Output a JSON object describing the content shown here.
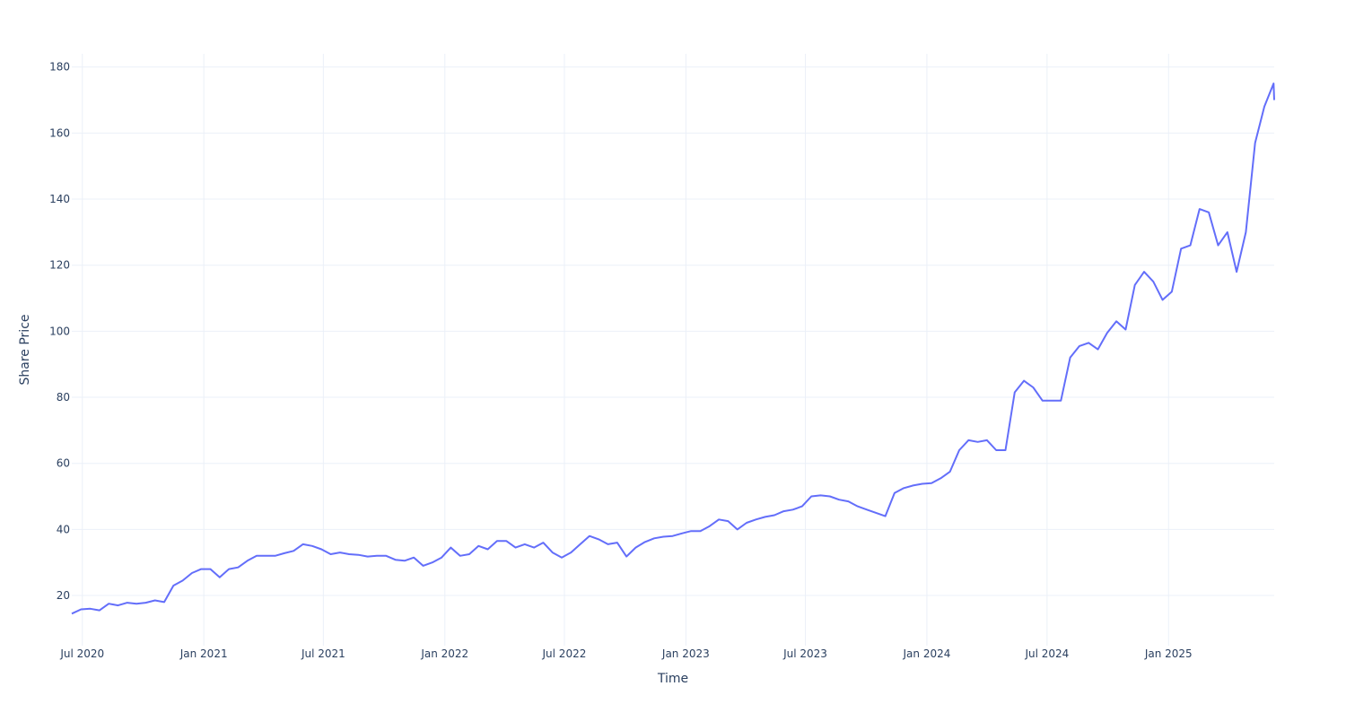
{
  "chart_data": {
    "type": "line",
    "title": "",
    "xlabel": "Time",
    "ylabel": "Share Price",
    "grid": true,
    "legend": "none",
    "colors": {
      "line": "#636efa",
      "grid": "#ebf0f8",
      "text": "#2a3f5f"
    },
    "xlim": [
      "2020-06-15",
      "2025-06-10"
    ],
    "ylim": [
      4.8,
      184
    ],
    "x_ticks": [
      {
        "date": "2020-07-01",
        "label": "Jul 2020"
      },
      {
        "date": "2021-01-01",
        "label": "Jan 2021"
      },
      {
        "date": "2021-07-01",
        "label": "Jul 2021"
      },
      {
        "date": "2022-01-01",
        "label": "Jan 2022"
      },
      {
        "date": "2022-07-01",
        "label": "Jul 2022"
      },
      {
        "date": "2023-01-01",
        "label": "Jan 2023"
      },
      {
        "date": "2023-07-01",
        "label": "Jul 2023"
      },
      {
        "date": "2024-01-01",
        "label": "Jan 2024"
      },
      {
        "date": "2024-07-01",
        "label": "Jul 2024"
      },
      {
        "date": "2025-01-01",
        "label": "Jan 2025"
      }
    ],
    "y_ticks": [
      {
        "value": 20,
        "label": "20"
      },
      {
        "value": 40,
        "label": "40"
      },
      {
        "value": 60,
        "label": "60"
      },
      {
        "value": 80,
        "label": "80"
      },
      {
        "value": 100,
        "label": "100"
      },
      {
        "value": 120,
        "label": "120"
      },
      {
        "value": 140,
        "label": "140"
      },
      {
        "value": 160,
        "label": "160"
      },
      {
        "value": 180,
        "label": "180"
      }
    ],
    "series": [
      {
        "name": "Share Price",
        "start_date": "2020-06-15",
        "step_days": 14,
        "values": [
          14.5,
          15.8,
          16,
          15.5,
          17.5,
          17,
          17.8,
          17.5,
          17.8,
          18.5,
          18,
          23,
          24.5,
          26.8,
          28,
          28,
          25.5,
          28,
          28.5,
          30.5,
          32,
          32,
          32,
          32.8,
          33.5,
          35.5,
          35,
          34,
          32.5,
          33,
          32.5,
          32.3,
          31.8,
          32,
          32,
          30.8,
          30.5,
          31.5,
          29,
          30,
          31.5,
          34.5,
          32,
          32.5,
          35,
          34,
          36.5,
          36.5,
          34.5,
          35.5,
          34.5,
          36,
          33,
          31.5,
          33,
          35.5,
          38,
          37,
          35.5,
          36,
          31.8,
          34.5,
          36.2,
          37.3,
          37.8,
          38,
          38.8,
          39.5,
          39.5,
          41,
          43,
          42.5,
          40,
          42,
          43,
          43.8,
          44.3,
          45.5,
          46,
          47,
          50,
          50.3,
          50,
          49,
          48.5,
          47,
          46,
          45,
          44,
          51,
          52.5,
          53.3,
          53.8,
          54,
          55.5,
          57.5,
          64,
          67,
          66.5,
          67,
          64,
          64,
          81.5,
          85,
          83,
          79,
          79,
          79,
          92,
          95.5,
          96.5,
          94.5,
          99.5,
          103,
          100.5,
          114,
          118,
          115,
          109.5,
          112,
          125,
          126,
          137,
          136,
          126,
          130,
          118,
          130,
          157,
          168,
          175,
          170
        ]
      }
    ]
  }
}
